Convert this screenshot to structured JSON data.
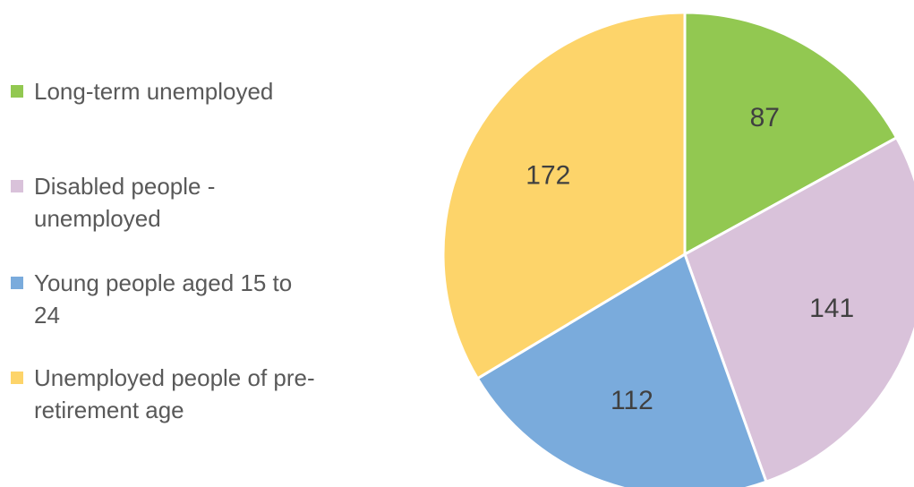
{
  "chart_data": {
    "type": "pie",
    "categories": [
      "Long-term unemployed",
      "Disabled people - unemployed",
      "Young people aged 15 to 24",
      "Unemployed people of pre-retirement age"
    ],
    "values": [
      87,
      141,
      112,
      172
    ],
    "colors": [
      "#92c851",
      "#d9c2da",
      "#7aabdc",
      "#fdd46a"
    ],
    "legend": "left"
  }
}
